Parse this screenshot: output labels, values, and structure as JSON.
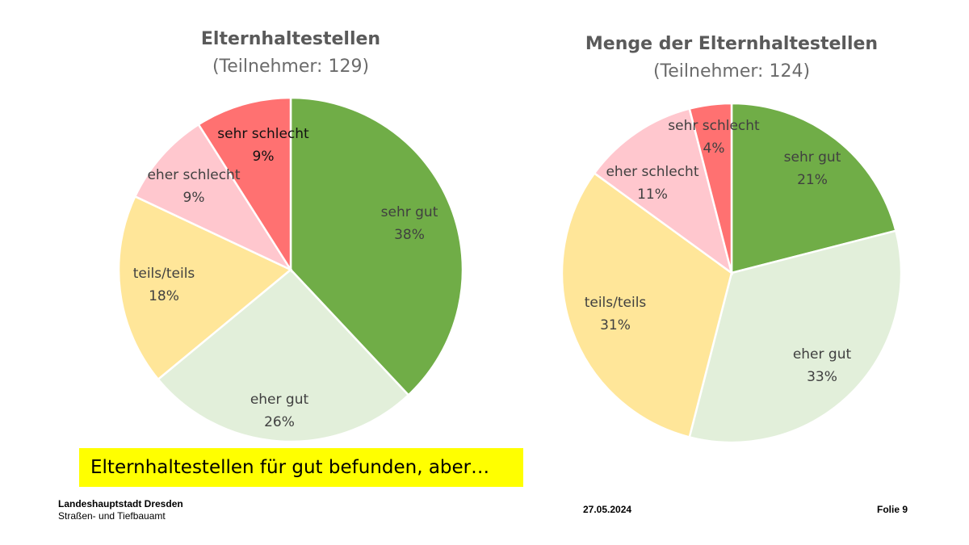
{
  "chart_data": [
    {
      "type": "pie",
      "title": "Elternhaltestellen",
      "subtitle": "(Teilnehmer: 129)",
      "slices": [
        {
          "label": "sehr gut",
          "value": 38,
          "value_label": "38%",
          "color": "#70ad47"
        },
        {
          "label": "eher gut",
          "value": 26,
          "value_label": "26%",
          "color": "#e2efda"
        },
        {
          "label": "teils/teils",
          "value": 18,
          "value_label": "18%",
          "color": "#ffe699"
        },
        {
          "label": "eher schlecht",
          "value": 9,
          "value_label": "9%",
          "color": "#ffc7ce"
        },
        {
          "label": "sehr schlecht",
          "value": 9,
          "value_label": "9%",
          "color": "#ff7171"
        }
      ]
    },
    {
      "type": "pie",
      "title": "Menge der Elternhaltestellen",
      "subtitle": "(Teilnehmer: 124)",
      "slices": [
        {
          "label": "sehr gut",
          "value": 21,
          "value_label": "21%",
          "color": "#70ad47"
        },
        {
          "label": "eher gut",
          "value": 33,
          "value_label": "33%",
          "color": "#e2efda"
        },
        {
          "label": "teils/teils",
          "value": 31,
          "value_label": "31%",
          "color": "#ffe699"
        },
        {
          "label": "eher schlecht",
          "value": 11,
          "value_label": "11%",
          "color": "#ffc7ce"
        },
        {
          "label": "sehr schlecht",
          "value": 4,
          "value_label": "4%",
          "color": "#ff7171"
        }
      ]
    }
  ],
  "callout": {
    "text": "Elternhaltestellen für gut befunden, aber…",
    "background": "#ffff00"
  },
  "footer": {
    "org_name": "Landeshauptstadt Dresden",
    "org_dept": "Straßen- und Tiefbauamt",
    "date": "27.05.2024",
    "slide": "Folie 9"
  }
}
